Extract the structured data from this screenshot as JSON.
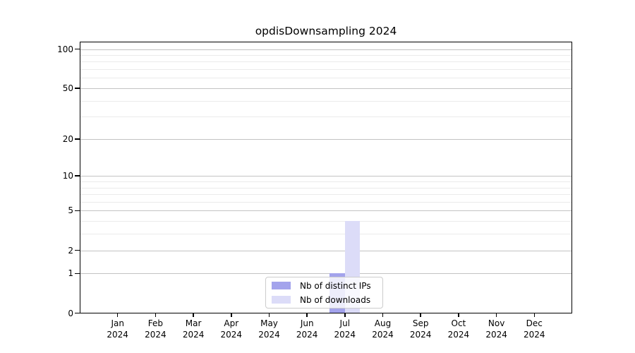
{
  "chart_data": {
    "type": "bar",
    "title": "opdisDownsampling 2024",
    "categories": [
      "Jan",
      "Feb",
      "Mar",
      "Apr",
      "May",
      "Jun",
      "Jul",
      "Aug",
      "Sep",
      "Oct",
      "Nov",
      "Dec"
    ],
    "category_year": "2024",
    "series": [
      {
        "name": "Nb of distinct IPs",
        "color": "#a3a3ec",
        "values": [
          0,
          0,
          0,
          0,
          0,
          0,
          1,
          0,
          0,
          0,
          0,
          0
        ]
      },
      {
        "name": "Nb of downloads",
        "color": "#dcdcf8",
        "values": [
          0,
          0,
          0,
          0,
          0,
          0,
          4,
          0,
          0,
          0,
          0,
          0
        ]
      }
    ],
    "xlabel": "",
    "ylabel": "",
    "y_axis": {
      "scale": "log1p",
      "ticks": [
        0,
        1,
        2,
        5,
        10,
        20,
        50,
        100
      ],
      "minor_ticks": [
        3,
        4,
        6,
        7,
        8,
        9,
        30,
        40,
        60,
        70,
        80,
        90
      ],
      "range": [
        0,
        114
      ]
    },
    "legend": {
      "location": "lower center",
      "entries": [
        "Nb of distinct IPs",
        "Nb of downloads"
      ]
    },
    "grid": {
      "enabled": true,
      "major_color": "#c3c3c3",
      "minor_color": "#ebebeb"
    }
  },
  "colors": {
    "background": "#ffffff",
    "spine": "#000000",
    "bar_distinct_ips": "#a3a3ec",
    "bar_downloads": "#dcdcf8",
    "legend_border": "#cccccc"
  }
}
